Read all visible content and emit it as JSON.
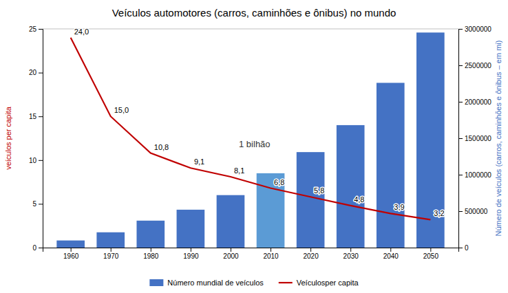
{
  "chart_data": {
    "type": "bar",
    "title": "Veículos automotores (carros, caminhões e ônibus) no mundo",
    "x": [
      1960,
      1970,
      1980,
      1990,
      2000,
      2010,
      2020,
      2030,
      2040,
      2050
    ],
    "xlim": [
      1953,
      2057
    ],
    "xticks": [
      1960,
      1970,
      1980,
      1990,
      2000,
      2010,
      2020,
      2030,
      2040,
      2050
    ],
    "ylabel": "veículos per capita",
    "ylim": [
      0,
      25
    ],
    "yticks": [
      0,
      5,
      10,
      15,
      20,
      25
    ],
    "y2label": "Número de veículos (carros, caminhões e ônibus – em mi)",
    "y2lim": [
      0,
      3000000
    ],
    "y2ticks": [
      0,
      500000,
      1000000,
      1500000,
      2000000,
      2500000,
      3000000
    ],
    "legend": "bottom",
    "series": [
      {
        "name": "Número mundial de veículos",
        "type": "bar",
        "axis": "y2",
        "colors": [
          "#4472C4",
          "#4472C4",
          "#4472C4",
          "#4472C4",
          "#4472C4",
          "#5B9BD5",
          "#4472C4",
          "#4472C4",
          "#4472C4",
          "#4472C4"
        ],
        "values": [
          98000,
          210000,
          370000,
          520000,
          720000,
          1020000,
          1310000,
          1680000,
          2260000,
          2950000
        ]
      },
      {
        "name": "Veículosper capita",
        "type": "line",
        "color": "#C00000",
        "data_labels": true,
        "values": [
          24.0,
          15.0,
          10.8,
          9.1,
          8.1,
          6.8,
          5.8,
          4.8,
          3.9,
          3.2
        ],
        "value_labels": [
          "24,0",
          "15,0",
          "10,8",
          "9,1",
          "8,1",
          "6,8",
          "5,8",
          "4,8",
          "3,9",
          "3,2"
        ]
      }
    ],
    "annotations": [
      {
        "text": "1 bilhão",
        "x": 2006,
        "y": 11.5
      }
    ]
  }
}
